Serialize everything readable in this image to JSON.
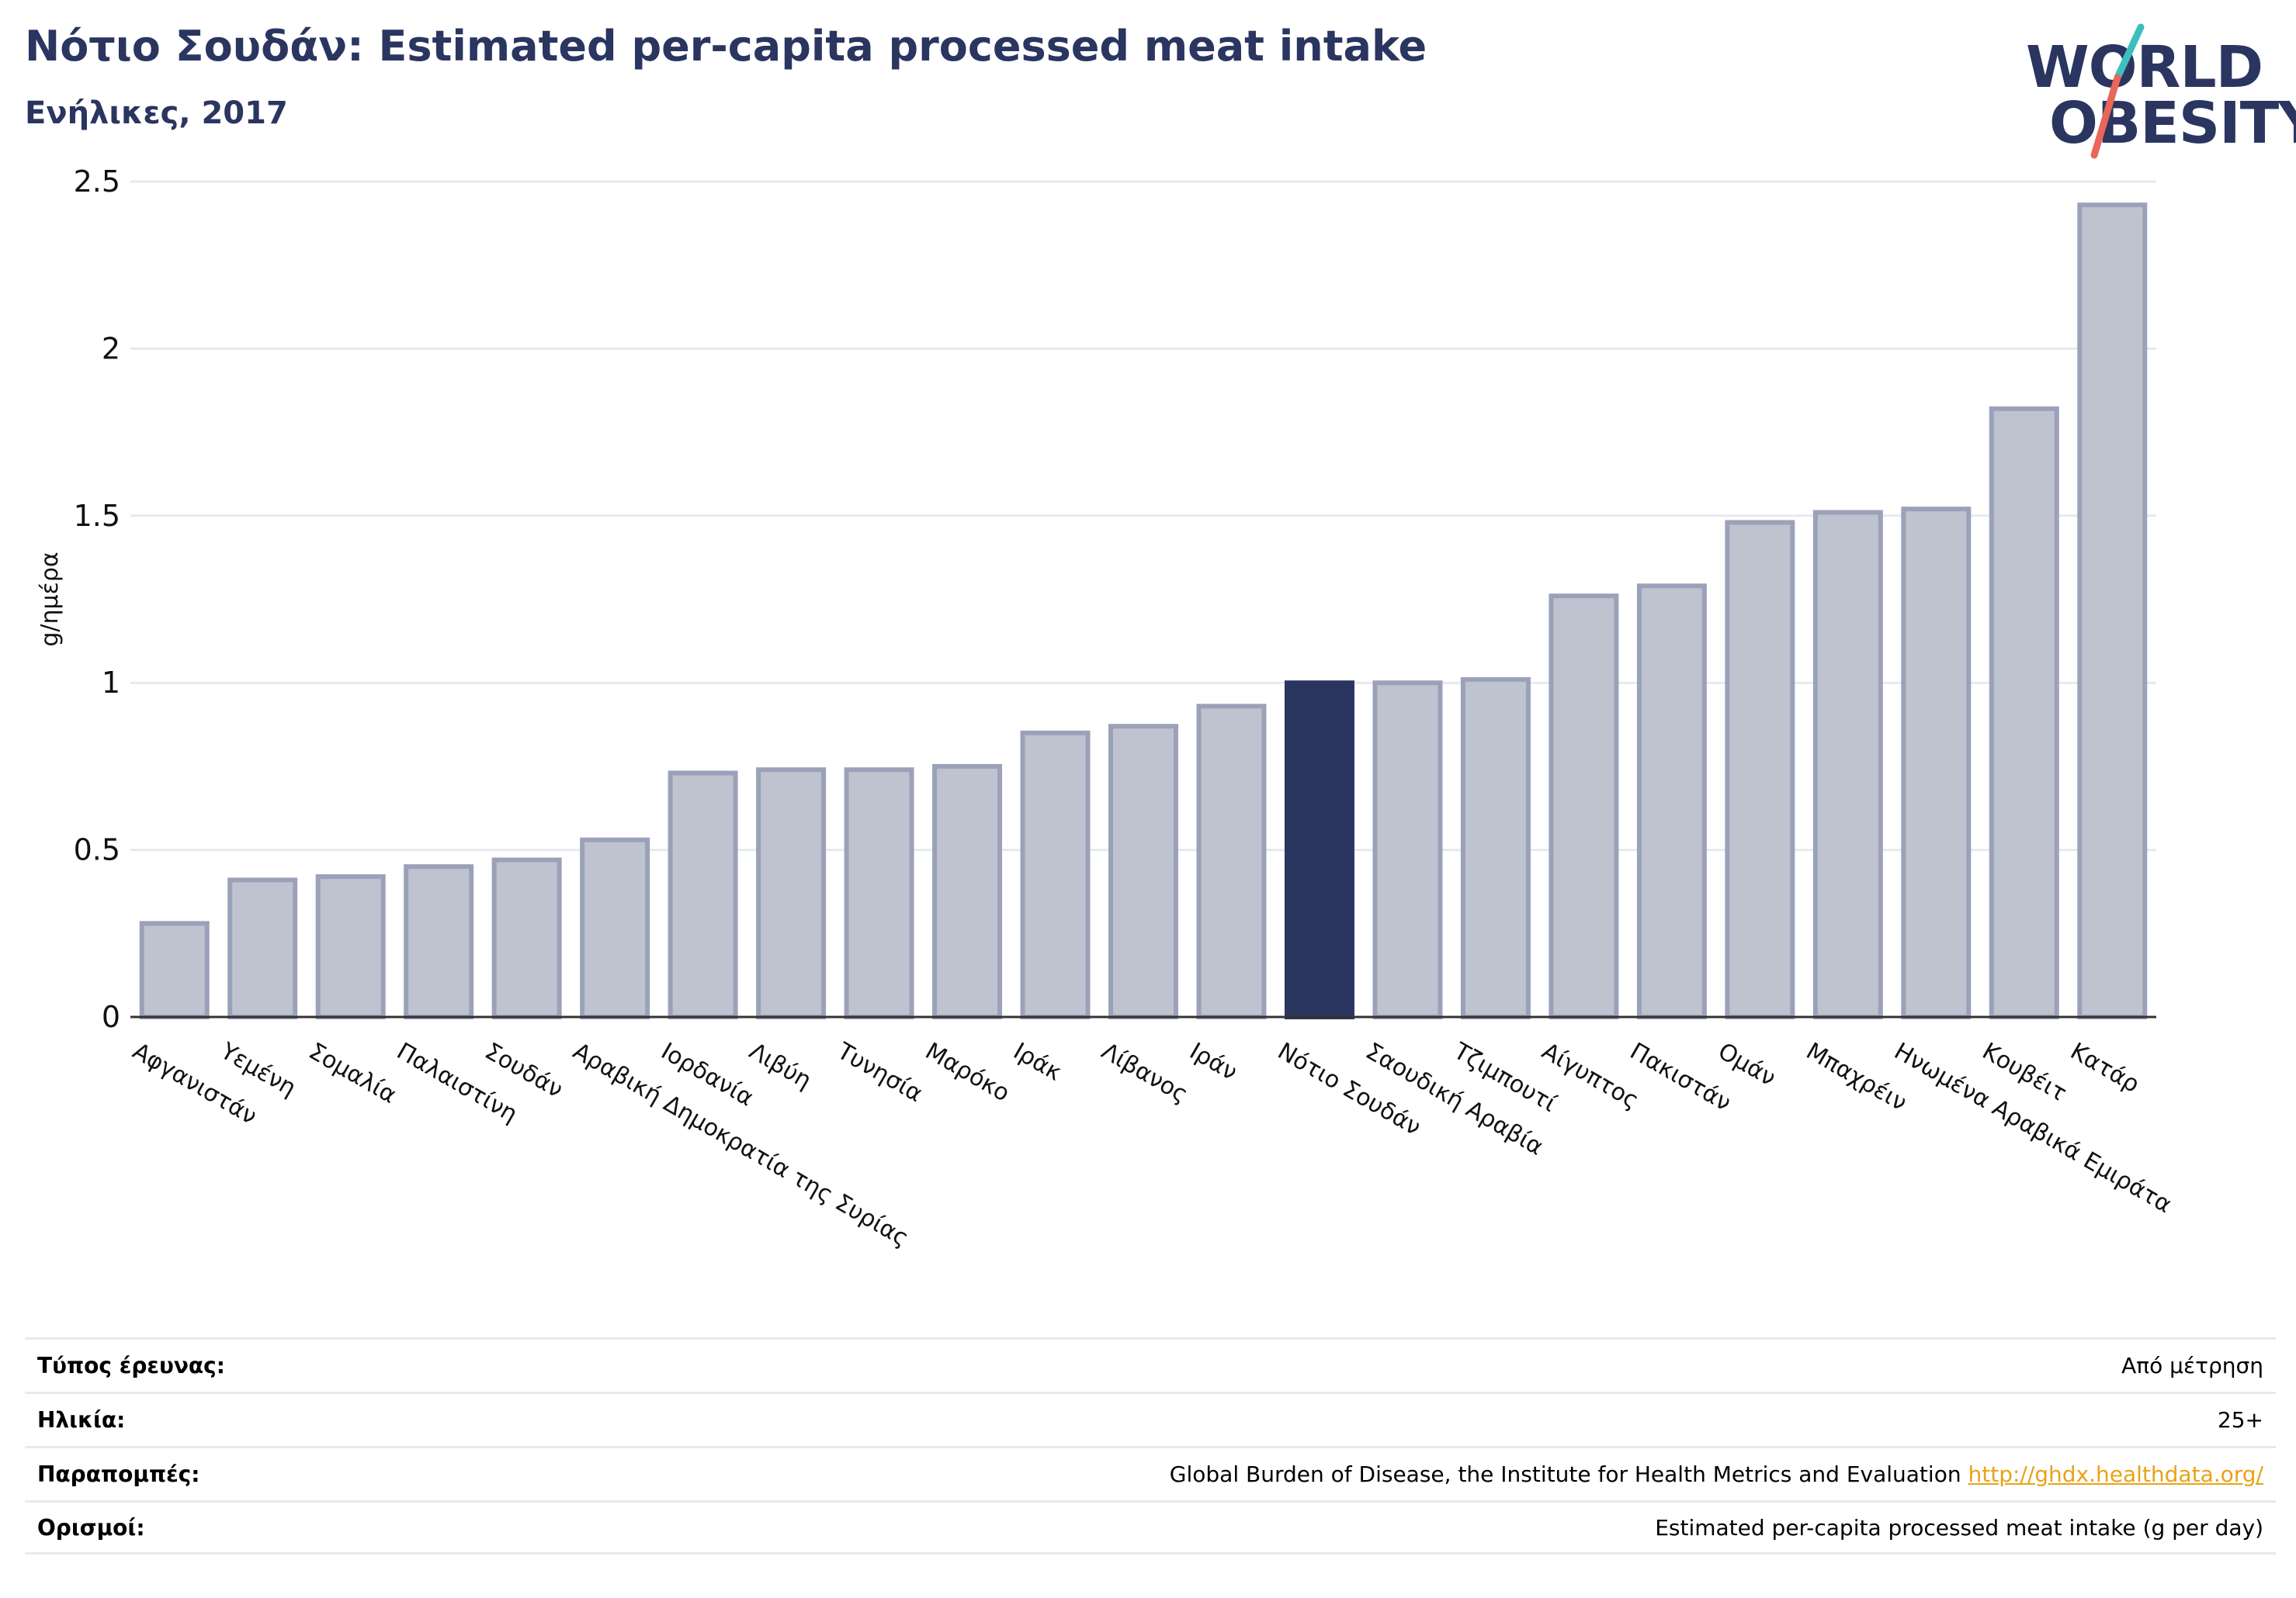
{
  "header": {
    "title": "Νότιο Σουδάν: Estimated per-capita processed meat intake",
    "subtitle": "Ενήλικες, 2017"
  },
  "logo": {
    "line1": "WORLD",
    "line2": "OBESITY",
    "text_color": "#2a3560",
    "slash_colors": [
      "#3dbfbf",
      "#e8665a"
    ]
  },
  "chart_data": {
    "type": "bar",
    "ylabel": "g/ημέρα",
    "ylim": [
      0,
      2.5
    ],
    "yticks": [
      "0",
      "0.5",
      "1",
      "1.5",
      "2",
      "2.5"
    ],
    "grid": true,
    "highlight": "Νότιο Σουδάν",
    "colors": {
      "bar": "#bfc3d0",
      "bar_edge": "#9ba1b9",
      "highlight": "#2a3560"
    },
    "categories": [
      "Αφγανιστάν",
      "Υεμένη",
      "Σομαλία",
      "Παλαιστίνη",
      "Σουδάν",
      "Αραβική Δημοκρατία της Συρίας",
      "Ιορδανία",
      "Λιβύη",
      "Τυνησία",
      "Μαρόκο",
      "Ιράκ",
      "Λίβανος",
      "Ιράν",
      "Νότιο Σουδάν",
      "Σαουδική Αραβία",
      "Τζιμπουτί",
      "Αίγυπτος",
      "Πακιστάν",
      "Ομάν",
      "Μπαχρέιν",
      "Ηνωμένα Αραβικά Εμιράτα",
      "Κουβέιτ",
      "Κατάρ"
    ],
    "values": [
      0.28,
      0.41,
      0.42,
      0.45,
      0.47,
      0.53,
      0.73,
      0.74,
      0.74,
      0.75,
      0.85,
      0.87,
      0.93,
      1.0,
      1.0,
      1.01,
      1.26,
      1.29,
      1.48,
      1.51,
      1.52,
      1.82,
      2.43
    ]
  },
  "info": {
    "rows": [
      {
        "label": "Τύπος έρευνας:",
        "value": "Από μέτρηση"
      },
      {
        "label": "Ηλικία:",
        "value": "25+"
      },
      {
        "label": "Παραπομπές:",
        "value": "Global Burden of Disease, the Institute for Health Metrics and Evaluation",
        "link": "http://ghdx.healthdata.org/"
      },
      {
        "label": "Ορισμοί:",
        "value": "Estimated per-capita processed meat intake (g per day)"
      }
    ]
  }
}
